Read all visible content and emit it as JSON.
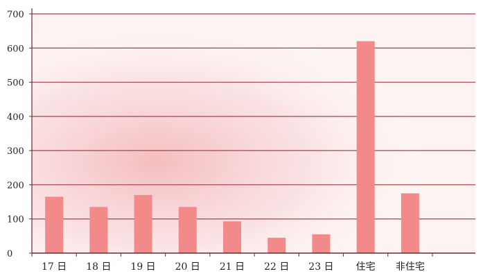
{
  "chart_data": {
    "type": "bar",
    "categories": [
      "17 日",
      "18 日",
      "19 日",
      "20 日",
      "21 日",
      "22 日",
      "23 日",
      "住宅",
      "非住宅"
    ],
    "values": [
      165,
      135,
      170,
      135,
      93,
      45,
      55,
      620,
      175
    ],
    "title": "",
    "xlabel": "",
    "ylabel": "",
    "ylim": [
      0,
      700
    ],
    "yticks": [
      0,
      100,
      200,
      300,
      400,
      500,
      600,
      700
    ],
    "grid": true,
    "legend": "none",
    "colors": {
      "bar": "#f28a8a",
      "grid": "#a0464b",
      "axis": "#6b2a2e",
      "background_glow": "#f3b3b6"
    }
  }
}
